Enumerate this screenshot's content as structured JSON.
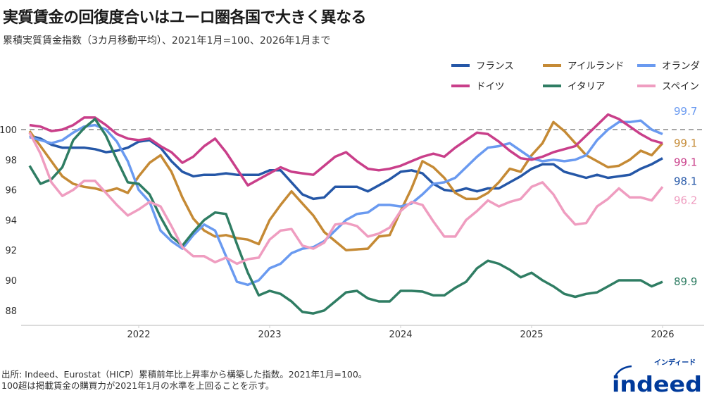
{
  "title": "実質賃金の回復度合いはユーロ圏各国で大きく異なる",
  "subtitle": "累積実質賃金指数（3カ月移動平均）、2021年1月=100、2026年1月まで",
  "footer": {
    "line1": "出所: Indeed、Eurostat（HICP）累積前年比上昇率から構築した指数。2021年1月=100。",
    "line2": "100超は掲載賃金の購買力が2021年1月の水準を上回ることを示す。"
  },
  "logo": {
    "text": "indeed",
    "kana": "インディード",
    "color": "#003a9b"
  },
  "chart_data": {
    "type": "line",
    "title": "",
    "xlabel": "",
    "ylabel": "",
    "ylim": [
      87.6,
      101.6
    ],
    "y_ticks": [
      "88",
      "90",
      "92",
      "94",
      "96",
      "98",
      "100"
    ],
    "x_ticks": [
      "2022",
      "2023",
      "2024",
      "2025",
      "2026"
    ],
    "reference_line": {
      "value": 100,
      "style": "dashed",
      "color": "#888888"
    },
    "grid": false,
    "legend": "top-right",
    "x": [
      "2021-03",
      "2021-04",
      "2021-05",
      "2021-06",
      "2021-07",
      "2021-08",
      "2021-09",
      "2021-10",
      "2021-11",
      "2021-12",
      "2022-01",
      "2022-02",
      "2022-03",
      "2022-04",
      "2022-05",
      "2022-06",
      "2022-07",
      "2022-08",
      "2022-09",
      "2022-10",
      "2022-11",
      "2022-12",
      "2023-01",
      "2023-02",
      "2023-03",
      "2023-04",
      "2023-05",
      "2023-06",
      "2023-07",
      "2023-08",
      "2023-09",
      "2023-10",
      "2023-11",
      "2023-12",
      "2024-01",
      "2024-02",
      "2024-03",
      "2024-04",
      "2024-05",
      "2024-06",
      "2024-07",
      "2024-08",
      "2024-09",
      "2024-10",
      "2024-11",
      "2024-12",
      "2025-01",
      "2025-02",
      "2025-03",
      "2025-04",
      "2025-05",
      "2025-06",
      "2025-07",
      "2025-08",
      "2025-09",
      "2025-10",
      "2025-11",
      "2025-12",
      "2026-01"
    ],
    "series": [
      {
        "name": "フランス",
        "color": "#2557a7",
        "end_label": "98.1",
        "values": [
          99.6,
          99.4,
          99.0,
          98.8,
          98.8,
          98.8,
          98.7,
          98.5,
          98.6,
          98.8,
          99.2,
          99.3,
          98.8,
          97.9,
          97.2,
          96.9,
          97.0,
          97.0,
          97.1,
          97.0,
          97.0,
          97.0,
          97.3,
          97.3,
          96.5,
          95.7,
          95.4,
          95.5,
          96.2,
          96.2,
          96.2,
          95.9,
          96.3,
          96.7,
          97.2,
          97.3,
          97.1,
          96.4,
          96.0,
          95.9,
          96.1,
          95.9,
          96.1,
          96.1,
          96.5,
          96.9,
          97.4,
          97.7,
          97.7,
          97.2,
          97.0,
          96.8,
          97.0,
          96.8,
          96.9,
          97.0,
          97.4,
          97.7,
          98.1
        ]
      },
      {
        "name": "アイルランド",
        "color": "#c58a35",
        "end_label": "99.1",
        "values": [
          99.9,
          98.9,
          97.9,
          96.9,
          96.4,
          96.2,
          96.1,
          95.9,
          96.1,
          95.8,
          96.9,
          97.8,
          98.3,
          97.2,
          95.5,
          94.1,
          93.3,
          92.9,
          93.0,
          92.8,
          92.7,
          92.4,
          94.0,
          95.0,
          95.9,
          95.1,
          94.3,
          93.2,
          92.6,
          92.0,
          92.05,
          92.1,
          92.9,
          93.0,
          94.6,
          96.1,
          97.9,
          97.5,
          96.8,
          95.8,
          95.4,
          95.4,
          95.8,
          96.5,
          97.4,
          97.2,
          98.3,
          99.1,
          100.5,
          99.9,
          99.1,
          98.3,
          97.9,
          97.5,
          97.6,
          98.0,
          98.6,
          98.3,
          99.1
        ]
      },
      {
        "name": "オランダ",
        "color": "#6a9af0",
        "end_label": "99.7",
        "values": [
          99.5,
          99.3,
          99.1,
          99.3,
          99.8,
          100.2,
          100.3,
          100.0,
          99.2,
          97.9,
          96.0,
          95.2,
          93.3,
          92.6,
          92.1,
          93.0,
          93.7,
          93.3,
          91.6,
          89.9,
          89.7,
          90.0,
          90.8,
          91.1,
          91.8,
          92.1,
          92.2,
          92.6,
          93.3,
          94.0,
          94.4,
          94.5,
          95.0,
          95.0,
          94.9,
          95.1,
          95.7,
          96.4,
          96.5,
          96.8,
          97.5,
          98.2,
          98.8,
          98.9,
          99.1,
          98.6,
          98.1,
          97.9,
          98.0,
          97.9,
          98.0,
          98.3,
          99.3,
          100.0,
          100.5,
          100.5,
          100.6,
          100.0,
          99.7
        ]
      },
      {
        "name": "ドイツ",
        "color": "#c93f8a",
        "end_label": "99.1",
        "values": [
          100.3,
          100.2,
          99.9,
          100.0,
          100.3,
          100.8,
          100.8,
          100.3,
          99.7,
          99.4,
          99.3,
          99.4,
          98.9,
          98.5,
          97.8,
          98.2,
          98.9,
          99.4,
          98.5,
          97.4,
          96.3,
          96.7,
          97.1,
          97.5,
          97.2,
          97.1,
          97.0,
          97.6,
          98.2,
          98.5,
          97.9,
          97.4,
          97.3,
          97.4,
          97.6,
          97.9,
          98.2,
          98.4,
          98.2,
          98.8,
          99.3,
          99.8,
          99.7,
          99.2,
          98.6,
          98.1,
          98.0,
          98.2,
          98.5,
          98.7,
          98.9,
          99.6,
          100.3,
          101.0,
          100.7,
          100.2,
          99.7,
          99.3,
          99.1
        ]
      },
      {
        "name": "イタリア",
        "color": "#2f7d63",
        "end_label": "89.9",
        "values": [
          97.6,
          96.4,
          96.7,
          97.5,
          99.3,
          100.1,
          100.7,
          99.6,
          98.0,
          96.5,
          96.4,
          95.7,
          94.2,
          92.9,
          92.3,
          93.2,
          94.0,
          94.5,
          94.4,
          92.4,
          90.5,
          89.0,
          89.3,
          89.1,
          88.6,
          87.9,
          87.8,
          88.0,
          88.6,
          89.2,
          89.3,
          88.8,
          88.6,
          88.6,
          89.3,
          89.3,
          89.25,
          89.0,
          89.0,
          89.5,
          89.9,
          90.8,
          91.3,
          91.1,
          90.7,
          90.2,
          90.5,
          90.0,
          89.6,
          89.1,
          88.9,
          89.1,
          89.2,
          89.6,
          90.0,
          90.0,
          90.0,
          89.6,
          89.9
        ]
      },
      {
        "name": "スペイン",
        "color": "#ef9dc0",
        "end_label": "96.2",
        "values": [
          99.8,
          98.4,
          96.5,
          95.6,
          96.0,
          96.6,
          96.6,
          95.8,
          95.0,
          94.3,
          94.7,
          95.2,
          94.9,
          93.6,
          92.2,
          91.6,
          91.6,
          91.2,
          91.5,
          91.1,
          91.4,
          91.5,
          92.7,
          93.3,
          93.4,
          92.3,
          92.1,
          92.5,
          93.7,
          93.8,
          93.6,
          92.9,
          93.1,
          93.5,
          94.6,
          95.2,
          95.0,
          93.9,
          92.9,
          92.9,
          94.0,
          94.6,
          95.3,
          94.9,
          95.2,
          95.4,
          96.2,
          96.5,
          95.7,
          94.5,
          93.7,
          93.8,
          94.9,
          95.4,
          96.1,
          95.5,
          95.5,
          95.3,
          96.2
        ]
      }
    ]
  }
}
